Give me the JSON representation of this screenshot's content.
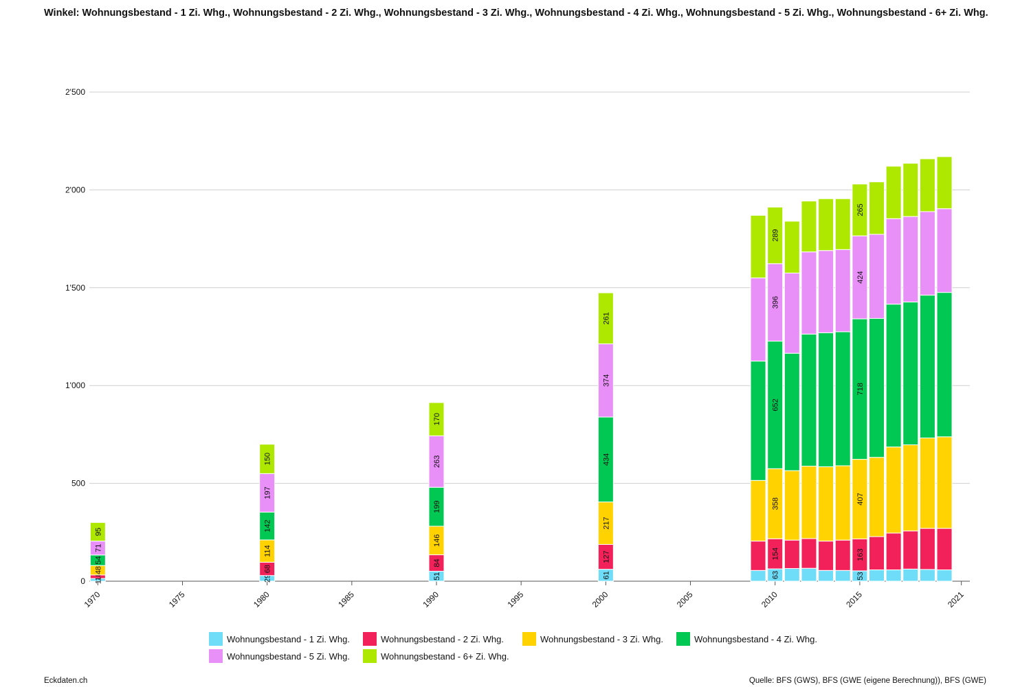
{
  "title": "Winkel: Wohnungsbestand - 1 Zi. Whg., Wohnungsbestand - 2 Zi. Whg., Wohnungsbestand - 3 Zi. Whg., Wohnungsbestand - 4 Zi. Whg., Wohnungsbestand - 5 Zi. Whg., Wohnungsbestand - 6+ Zi. Whg.",
  "footer": {
    "left": "Eckdaten.ch",
    "right": "Quelle: BFS (GWS), BFS (GWE (eigene Berechnung)), BFS (GWE)"
  },
  "chart_data": {
    "type": "bar",
    "stacked": true,
    "grid": true,
    "legend_position": "bottom",
    "ylim": [
      0,
      2500
    ],
    "yticks": [
      {
        "value": 0,
        "label": "0"
      },
      {
        "value": 500,
        "label": "500"
      },
      {
        "value": 1000,
        "label": "1'000"
      },
      {
        "value": 1500,
        "label": "1'500"
      },
      {
        "value": 2000,
        "label": "2'000"
      },
      {
        "value": 2500,
        "label": "2'500"
      }
    ],
    "xlim": [
      1969.5,
      2021.5
    ],
    "xticks": [
      1970,
      1975,
      1980,
      1985,
      1990,
      1995,
      2000,
      2005,
      2010,
      2015,
      2021
    ],
    "x": [
      1970,
      1980,
      1990,
      2000,
      2009,
      2010,
      2011,
      2012,
      2013,
      2014,
      2015,
      2016,
      2017,
      2018,
      2019,
      2020
    ],
    "labeled_years": [
      1970,
      1980,
      1990,
      2000,
      2010,
      2015
    ],
    "series": [
      {
        "name": "Wohnungsbestand - 1 Zi. Whg.",
        "color": "#6fdcf8",
        "values": [
          14,
          29,
          51,
          61,
          55,
          63,
          65,
          66,
          55,
          55,
          53,
          58,
          58,
          62,
          60,
          58
        ]
      },
      {
        "name": "Wohnungsbestand - 2 Zi. Whg.",
        "color": "#f2215a",
        "values": [
          18,
          68,
          84,
          127,
          150,
          154,
          145,
          152,
          150,
          155,
          163,
          170,
          188,
          195,
          210,
          212
        ]
      },
      {
        "name": "Wohnungsbestand - 3 Zi. Whg.",
        "color": "#ffd200",
        "values": [
          48,
          114,
          146,
          217,
          310,
          358,
          355,
          370,
          380,
          380,
          407,
          405,
          440,
          440,
          462,
          468
        ]
      },
      {
        "name": "Wohnungsbestand - 4 Zi. Whg.",
        "color": "#00c853",
        "values": [
          54,
          142,
          199,
          434,
          610,
          652,
          600,
          675,
          685,
          685,
          718,
          710,
          730,
          730,
          730,
          738
        ]
      },
      {
        "name": "Wohnungsbestand - 5 Zi. Whg.",
        "color": "#e890f8",
        "values": [
          71,
          197,
          263,
          374,
          425,
          396,
          410,
          420,
          420,
          420,
          424,
          430,
          437,
          437,
          427,
          428
        ]
      },
      {
        "name": "Wohnungsbestand - 6+ Zi. Whg.",
        "color": "#aee800",
        "values": [
          95,
          150,
          170,
          261,
          320,
          289,
          265,
          260,
          265,
          260,
          265,
          268,
          268,
          272,
          270,
          266
        ]
      }
    ]
  }
}
